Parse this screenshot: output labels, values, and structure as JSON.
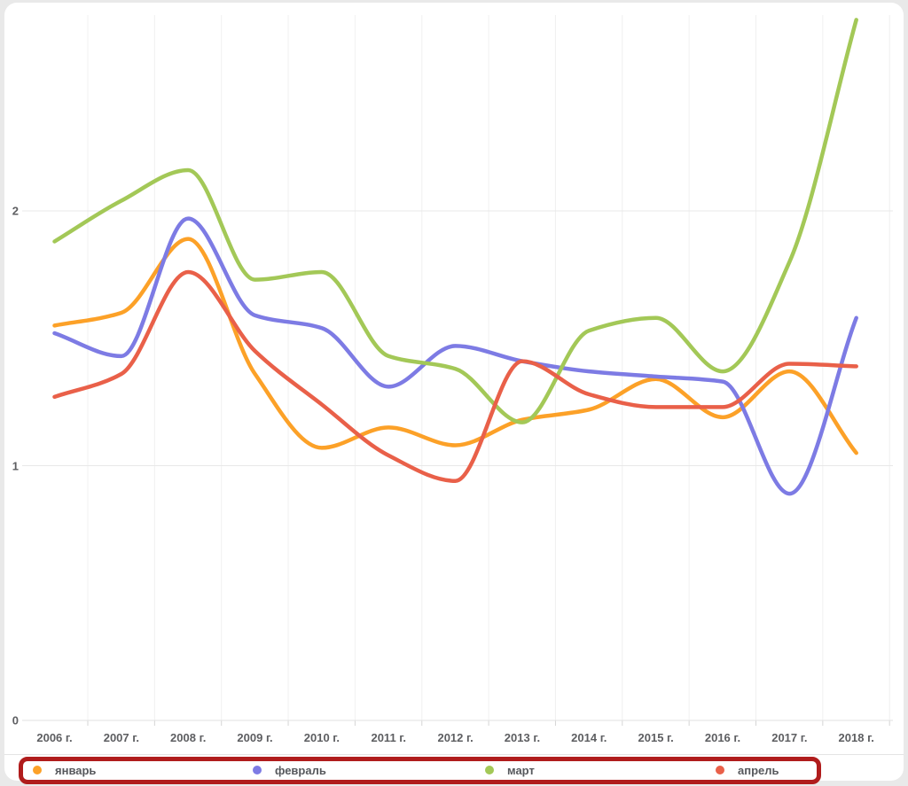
{
  "chart_data": {
    "type": "line",
    "curve": "smooth",
    "title": "",
    "xlabel": "",
    "ylabel": "",
    "grid": true,
    "legend_position": "bottom",
    "x_categories": [
      "2006 г.",
      "2007 г.",
      "2008 г.",
      "2009 г.",
      "2010 г.",
      "2011 г.",
      "2012 г.",
      "2013 г.",
      "2014 г.",
      "2015 г.",
      "2016 г.",
      "2017 г.",
      "2018 г."
    ],
    "y_tick_labels": [
      "0",
      "1",
      "2"
    ],
    "y_ticks": [
      0,
      1,
      2
    ],
    "ylim": [
      0,
      2.9
    ],
    "series": [
      {
        "name": "январь",
        "color": "#FCA128",
        "values": [
          1.55,
          1.6,
          1.89,
          1.36,
          1.07,
          1.15,
          1.08,
          1.18,
          1.22,
          1.34,
          1.19,
          1.37,
          1.05
        ]
      },
      {
        "name": "февраль",
        "color": "#7D7BE4",
        "values": [
          1.52,
          1.43,
          1.97,
          1.59,
          1.54,
          1.31,
          1.47,
          1.41,
          1.37,
          1.35,
          1.33,
          0.89,
          1.58
        ]
      },
      {
        "name": "март",
        "color": "#A3C857",
        "values": [
          1.88,
          2.04,
          2.16,
          1.73,
          1.76,
          1.43,
          1.38,
          1.17,
          1.53,
          1.58,
          1.37,
          1.8,
          2.75
        ]
      },
      {
        "name": "апрель",
        "color": "#E96049",
        "values": [
          1.27,
          1.36,
          1.76,
          1.45,
          1.24,
          1.04,
          0.94,
          1.41,
          1.28,
          1.23,
          1.23,
          1.4,
          1.39
        ]
      }
    ]
  },
  "annotation": {
    "legend_highlight_color": "#B01C1C"
  },
  "colors": {
    "page_bg": "#E9E9E9",
    "card_bg": "#FFFFFF",
    "grid_vertical": "#F0F0F0",
    "grid_horizontal": "#E8E8E8",
    "baseline": "#E2E2E2",
    "tick": "#D5D5D5",
    "axis_text": "#5D5E61",
    "divider": "#E4E4E4"
  }
}
